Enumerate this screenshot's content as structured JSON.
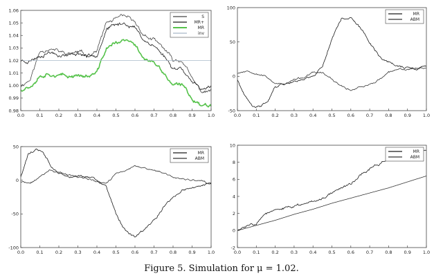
{
  "caption": "Figure 5. Simulation for μ = 1.02.",
  "colors": {
    "frame": "#444444",
    "dark": "#1a1a1a",
    "mid": "#333333",
    "green": "#55c24a",
    "inv": "#a8b8c8"
  },
  "chart_data": [
    {
      "type": "line",
      "xlim": [
        0,
        1
      ],
      "ylim": [
        0.98,
        1.06
      ],
      "xticks": [
        "0.0",
        "0.1",
        "0.2",
        "0.3",
        "0.4",
        "0.5",
        "0.6",
        "0.7",
        "0.8",
        "0.9",
        "1.0"
      ],
      "yticks": [
        "0.98",
        "0.99",
        "1.00",
        "1.01",
        "1.02",
        "1.03",
        "1.04",
        "1.05",
        "1.06"
      ],
      "legend_position": "top-right",
      "series": [
        {
          "name": "S",
          "color": "#444444",
          "width": 0.8,
          "noise": 0.0012,
          "seed": 11,
          "x": [
            0,
            0.05,
            0.1,
            0.15,
            0.2,
            0.25,
            0.3,
            0.35,
            0.4,
            0.45,
            0.5,
            0.55,
            0.6,
            0.65,
            0.7,
            0.75,
            0.8,
            0.85,
            0.9,
            0.95,
            1.0
          ],
          "y": [
            1.0,
            1.005,
            1.027,
            1.03,
            1.027,
            1.025,
            1.027,
            1.024,
            1.028,
            1.05,
            1.053,
            1.055,
            1.05,
            1.04,
            1.036,
            1.03,
            1.02,
            1.02,
            1.005,
            0.995,
            0.996
          ]
        },
        {
          "name": "MR+",
          "color": "#1a1a1a",
          "width": 0.8,
          "noise": 0.0012,
          "seed": 23,
          "x": [
            0,
            0.05,
            0.1,
            0.15,
            0.2,
            0.25,
            0.3,
            0.35,
            0.4,
            0.45,
            0.5,
            0.55,
            0.6,
            0.65,
            0.7,
            0.75,
            0.8,
            0.85,
            0.9,
            0.95,
            1.0
          ],
          "y": [
            1.02,
            1.02,
            1.024,
            1.027,
            1.025,
            1.024,
            1.026,
            1.024,
            1.025,
            1.045,
            1.048,
            1.05,
            1.046,
            1.036,
            1.032,
            1.024,
            1.014,
            1.014,
            1.003,
            0.995,
            1.001
          ]
        },
        {
          "name": "MR",
          "color": "#55c24a",
          "width": 1.6,
          "noise": 0.0012,
          "seed": 37,
          "x": [
            0,
            0.05,
            0.1,
            0.15,
            0.2,
            0.25,
            0.3,
            0.35,
            0.4,
            0.45,
            0.5,
            0.55,
            0.6,
            0.65,
            0.7,
            0.75,
            0.8,
            0.85,
            0.9,
            0.95,
            1.0
          ],
          "y": [
            0.997,
            1.0,
            1.008,
            1.01,
            1.008,
            1.007,
            1.009,
            1.007,
            1.01,
            1.03,
            1.034,
            1.036,
            1.032,
            1.022,
            1.018,
            1.01,
            1.0,
            1.0,
            0.99,
            0.984,
            0.985
          ]
        },
        {
          "name": "inv",
          "color": "#a8b8c8",
          "width": 0.8,
          "noise": 0,
          "seed": 1,
          "x": [
            0,
            1
          ],
          "y": [
            1.02,
            1.02
          ]
        }
      ]
    },
    {
      "type": "line",
      "xlim": [
        0,
        1
      ],
      "ylim": [
        -50,
        100
      ],
      "xticks": [
        "0.0",
        "0.1",
        "0.2",
        "0.3",
        "0.4",
        "0.5",
        "0.6",
        "0.7",
        "0.8",
        "0.9",
        "1.0"
      ],
      "yticks": [
        "-50",
        "0",
        "50",
        "100"
      ],
      "legend_position": "top-right",
      "series": [
        {
          "name": "MR",
          "color": "#1a1a1a",
          "width": 0.8,
          "noise": 1.4,
          "seed": 41,
          "x": [
            0,
            0.04,
            0.08,
            0.12,
            0.16,
            0.2,
            0.25,
            0.3,
            0.35,
            0.4,
            0.45,
            0.5,
            0.55,
            0.6,
            0.65,
            0.7,
            0.75,
            0.8,
            0.85,
            0.9,
            0.95,
            1.0
          ],
          "y": [
            -5,
            -30,
            -45,
            -45,
            -35,
            -15,
            -10,
            -8,
            -3,
            0,
            15,
            55,
            85,
            85,
            70,
            50,
            30,
            20,
            15,
            12,
            10,
            15
          ]
        },
        {
          "name": "ABM",
          "color": "#333333",
          "width": 0.8,
          "noise": 1.0,
          "seed": 53,
          "x": [
            0,
            0.05,
            0.1,
            0.15,
            0.2,
            0.25,
            0.3,
            0.35,
            0.4,
            0.45,
            0.5,
            0.55,
            0.6,
            0.65,
            0.7,
            0.75,
            0.8,
            0.85,
            0.9,
            0.95,
            1.0
          ],
          "y": [
            5,
            8,
            5,
            0,
            -10,
            -12,
            -5,
            -2,
            5,
            5,
            -5,
            -15,
            -20,
            -15,
            -12,
            -5,
            5,
            10,
            10,
            12,
            12
          ]
        }
      ]
    },
    {
      "type": "line",
      "xlim": [
        0,
        1
      ],
      "ylim": [
        -100,
        50
      ],
      "xticks": [
        "0.0",
        "0.1",
        "0.2",
        "0.3",
        "0.4",
        "0.5",
        "0.6",
        "0.7",
        "0.8",
        "0.9",
        "1.0"
      ],
      "yticks": [
        "-100",
        "-50",
        "0",
        "50"
      ],
      "legend_position": "top-right",
      "series": [
        {
          "name": "MR",
          "color": "#1a1a1a",
          "width": 0.8,
          "noise": 1.4,
          "seed": 61,
          "x": [
            0,
            0.04,
            0.08,
            0.12,
            0.16,
            0.2,
            0.25,
            0.3,
            0.35,
            0.4,
            0.45,
            0.5,
            0.55,
            0.6,
            0.65,
            0.7,
            0.75,
            0.8,
            0.85,
            0.9,
            0.95,
            1.0
          ],
          "y": [
            5,
            40,
            45,
            40,
            20,
            10,
            5,
            5,
            5,
            0,
            -10,
            -50,
            -75,
            -85,
            -75,
            -60,
            -40,
            -25,
            -15,
            -10,
            -8,
            -5
          ]
        },
        {
          "name": "ABM",
          "color": "#333333",
          "width": 0.8,
          "noise": 1.0,
          "seed": 71,
          "x": [
            0,
            0.05,
            0.1,
            0.15,
            0.2,
            0.25,
            0.3,
            0.35,
            0.4,
            0.45,
            0.5,
            0.55,
            0.6,
            0.65,
            0.7,
            0.75,
            0.8,
            0.85,
            0.9,
            0.95,
            1.0
          ],
          "y": [
            -2,
            -5,
            5,
            15,
            12,
            8,
            5,
            2,
            -2,
            -5,
            10,
            15,
            20,
            18,
            15,
            10,
            5,
            2,
            0,
            -2,
            -5
          ]
        }
      ]
    },
    {
      "type": "line",
      "xlim": [
        0,
        1
      ],
      "ylim": [
        -2,
        10
      ],
      "xticks": [
        "0.0",
        "0.1",
        "0.2",
        "0.3",
        "0.4",
        "0.5",
        "0.6",
        "0.7",
        "0.8",
        "0.9",
        "1.0"
      ],
      "yticks": [
        "-2",
        "0",
        "2",
        "4",
        "6",
        "8",
        "10"
      ],
      "legend_position": "top-right",
      "series": [
        {
          "name": "MR",
          "color": "#1a1a1a",
          "width": 0.8,
          "noise": 0.12,
          "seed": 83,
          "x": [
            0,
            0.05,
            0.1,
            0.15,
            0.2,
            0.3,
            0.4,
            0.45,
            0.5,
            0.55,
            0.6,
            0.65,
            0.7,
            0.75,
            0.8,
            0.85,
            0.9,
            0.95,
            1.0
          ],
          "y": [
            0,
            0.5,
            1.0,
            2.0,
            2.3,
            2.8,
            3.5,
            3.8,
            4.5,
            5.0,
            5.5,
            6.5,
            7.2,
            7.8,
            8.5,
            9.0,
            9.2,
            9.3,
            9.5
          ]
        },
        {
          "name": "ABM",
          "color": "#333333",
          "width": 0.8,
          "noise": 0,
          "seed": 1,
          "x": [
            0,
            0.1,
            0.2,
            0.3,
            0.4,
            0.5,
            0.6,
            0.7,
            0.8,
            0.9,
            1.0
          ],
          "y": [
            0,
            0.6,
            1.2,
            1.9,
            2.5,
            3.2,
            3.8,
            4.4,
            5.0,
            5.7,
            6.4
          ]
        }
      ]
    }
  ]
}
